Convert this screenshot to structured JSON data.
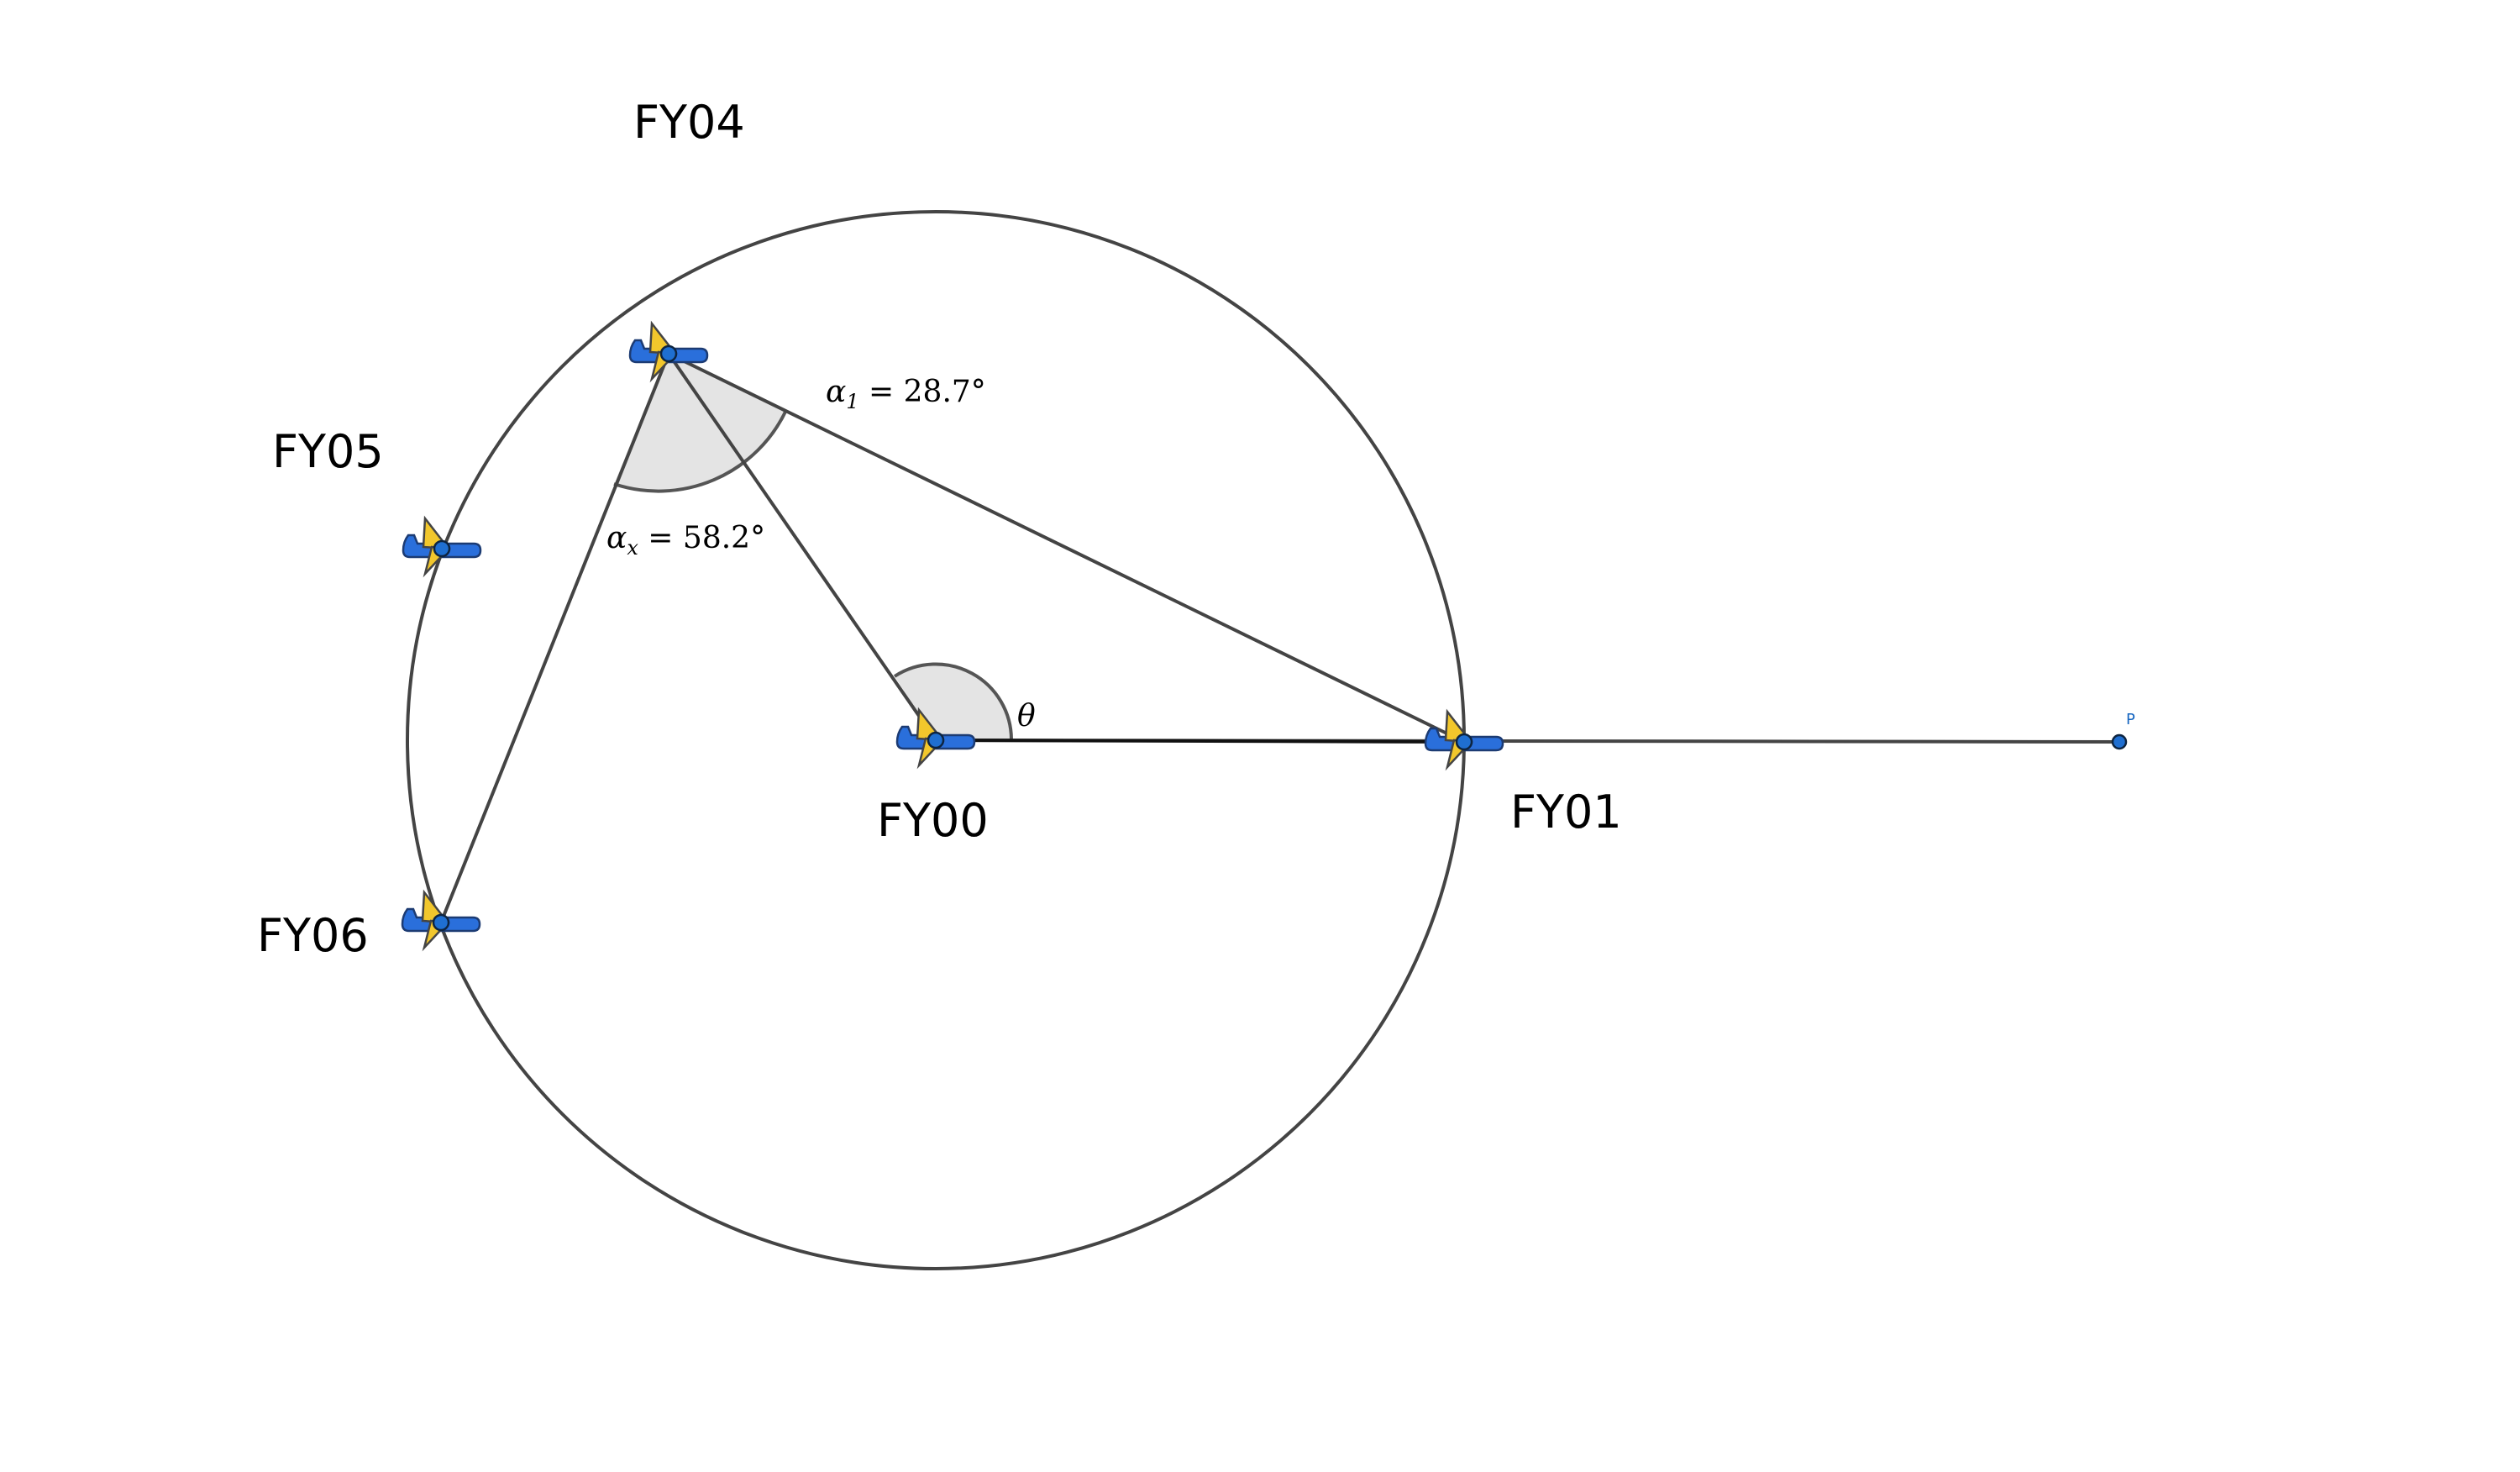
{
  "labels": {
    "fy00": "FY00",
    "fy01": "FY01",
    "fy04": "FY04",
    "fy05": "FY05",
    "fy06": "FY06",
    "p": "P",
    "theta": "θ",
    "alpha_1": {
      "symbol": "α",
      "subscript": "1",
      "value": " = 28.7°"
    },
    "alpha_x": {
      "symbol": "α",
      "subscript": "x",
      "value": " = 58.2°"
    }
  },
  "colors": {
    "circle_stroke": "#444444",
    "line_stroke": "#444444",
    "angle_fill": "#e4e4e4",
    "angle_stroke": "#555555",
    "aircraft_body": "#2a6fdb",
    "aircraft_wing": "#f2c72c",
    "point_fill": "#1f6fd1"
  },
  "icons": {
    "aircraft": "aircraft-icon",
    "point": "point-marker-icon"
  }
}
